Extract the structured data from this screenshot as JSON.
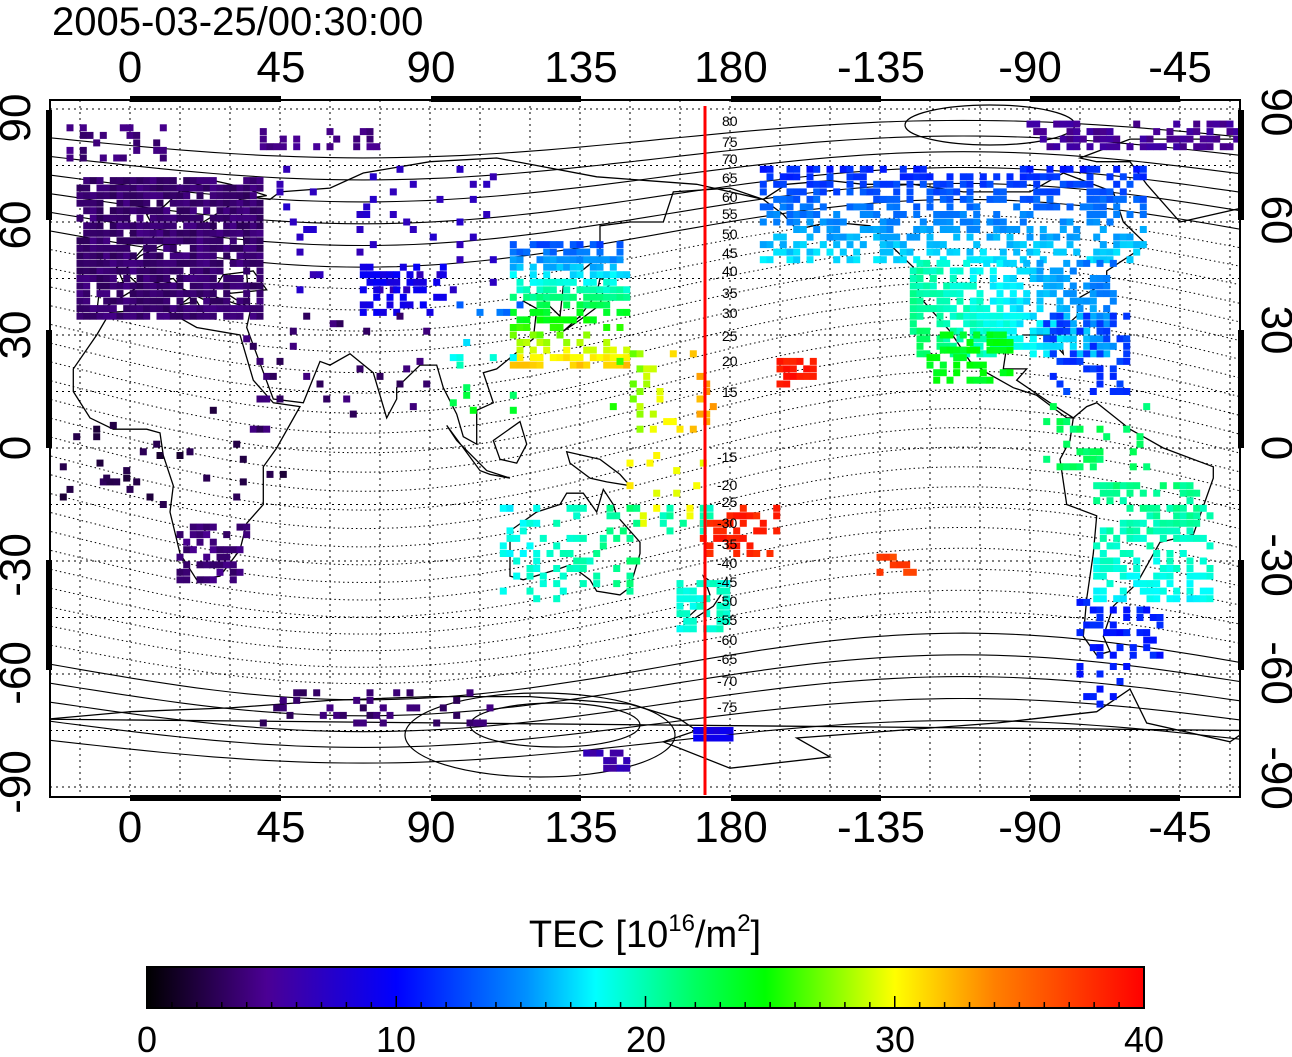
{
  "header": {
    "timestamp": "2005-03-25/00:30:00"
  },
  "map": {
    "top_lon_labels": [
      "0",
      "45",
      "90",
      "135",
      "180",
      "-135",
      "-90",
      "-45"
    ],
    "bottom_lon_labels": [
      "0",
      "45",
      "90",
      "135",
      "180",
      "-135",
      "-90",
      "-45"
    ],
    "left_lat_labels": [
      "90",
      "60",
      "30",
      "0",
      "-30",
      "-60",
      "-90"
    ],
    "right_lat_labels": [
      "90",
      "60",
      "30",
      "0",
      "-30",
      "-60",
      "-90"
    ],
    "meridian_lon": 172,
    "meridian_color": "#ff0000",
    "contour_labels_north": [
      "80",
      "75",
      "70",
      "65",
      "60",
      "55",
      "50",
      "45",
      "40",
      "35",
      "30",
      "25",
      "20",
      "15"
    ],
    "contour_labels_south": [
      "-15",
      "-20",
      "-25",
      "-30",
      "-35",
      "-40",
      "-45",
      "-50",
      "-55",
      "-60",
      "-65",
      "-70",
      "-75"
    ]
  },
  "colorbar": {
    "title_prefix": "TEC  [10",
    "title_sup1": "16",
    "title_mid": "/m",
    "title_sup2": "2",
    "title_suffix": "]",
    "range": [
      0,
      40
    ],
    "tick_labels": [
      "0",
      "10",
      "20",
      "30",
      "40"
    ],
    "colors": [
      "#000000",
      "#4b0094",
      "#0000ff",
      "#00ffff",
      "#00ff00",
      "#ffff00",
      "#ff8000",
      "#ff0000"
    ]
  }
}
